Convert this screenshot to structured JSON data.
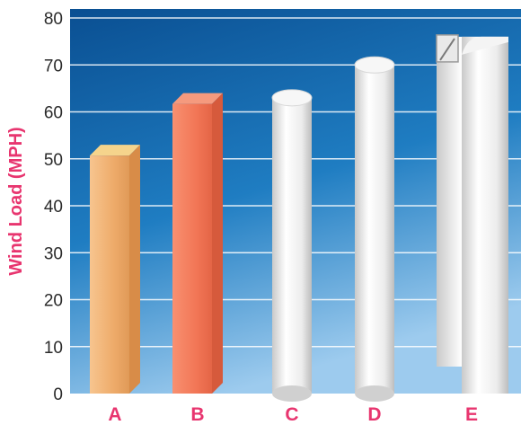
{
  "chart_data": {
    "type": "bar",
    "ylabel": "Wind Load (MPH)",
    "categories": [
      "A",
      "B",
      "C",
      "D",
      "E"
    ],
    "values": [
      53,
      64,
      63,
      70,
      76
    ],
    "ylim": [
      0,
      80
    ],
    "yticks": [
      0,
      10,
      20,
      30,
      40,
      50,
      60,
      70,
      80
    ],
    "grid": true,
    "colors": {
      "background_top": "#0a5a9e",
      "background_bottom": "#5fa9dc",
      "gridline": "#ffffff",
      "label": "#e8356f",
      "bar_A": "#f0b070",
      "bar_B": "#f27a5a",
      "bar_C": "#f2f2f2",
      "bar_D": "#f2f2f2",
      "bar_E": "#f2f2f2"
    }
  }
}
